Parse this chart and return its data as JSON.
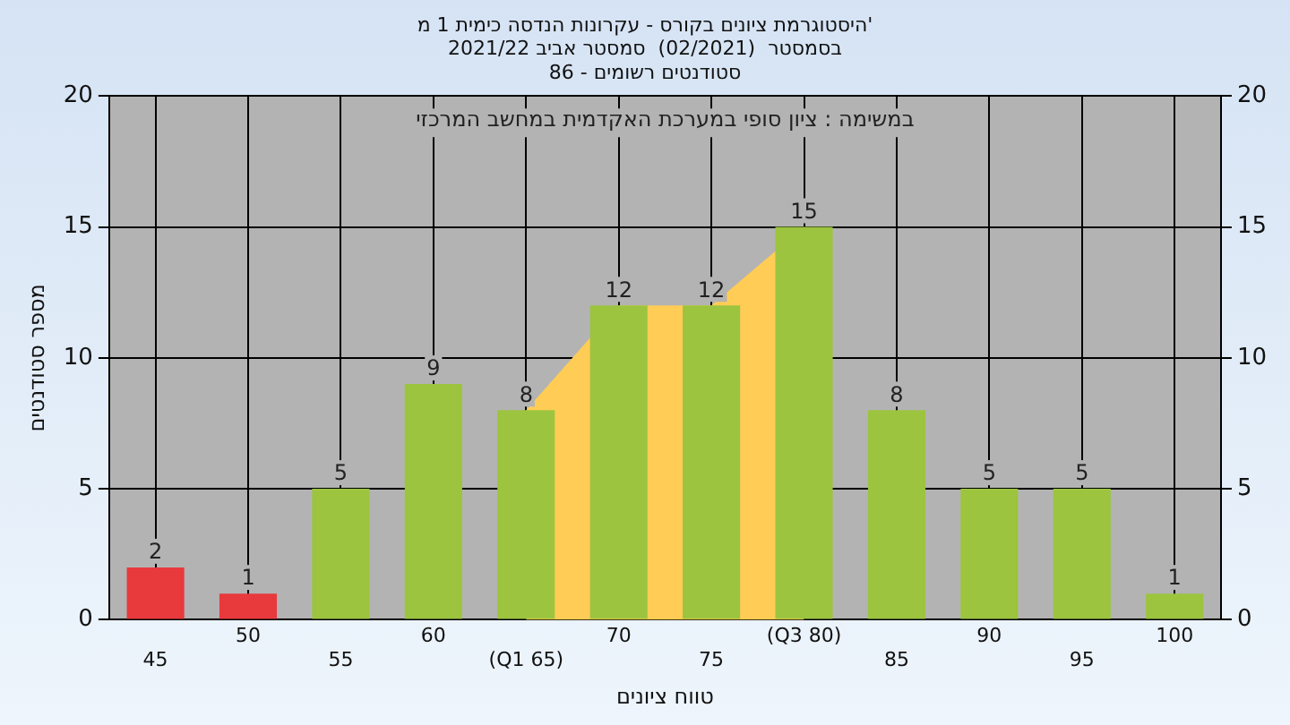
{
  "chart_data": {
    "type": "bar",
    "title": "היסטוגרמת ציונים בקורס - עקרונות הנדסה כימית 1 מ'",
    "subtitle": "בסמסטר  (02/2021)  סמסטר אביב 2021/22\nסטודנטים רשומים - 86",
    "xlabel": "טווח ציונים",
    "ylabel": "מספר סטודנטים",
    "annotations": [
      "במשימה : ציון סופי במערכת האקדמית במחשב המרכזי"
    ],
    "categories": [
      "45",
      "50",
      "55",
      "60",
      "(Q1 65)",
      "70",
      "75",
      "(Q3 80)",
      "85",
      "90",
      "95",
      "100"
    ],
    "series": [
      {
        "values": [
          2,
          1,
          5,
          9,
          8,
          12,
          12,
          15,
          8,
          5,
          5,
          1
        ],
        "value_labels": [
          "2",
          "1",
          "5",
          "9",
          "8",
          "12",
          "12",
          "15",
          "8",
          "5",
          "5",
          "1"
        ],
        "colors": [
          "#e8393d",
          "#e8393d",
          "#9cc43f",
          "#9cc43f",
          "#9cc43f",
          "#9cc43f",
          "#9cc43f",
          "#9cc43f",
          "#9cc43f",
          "#9cc43f",
          "#9cc43f",
          "#9cc43f"
        ]
      },
      {
        "type": "area",
        "color": "#ffcc55",
        "values": [
          null,
          null,
          null,
          null,
          8,
          12,
          12,
          15,
          null,
          null,
          null,
          null
        ]
      }
    ],
    "ylim": [
      0,
      20
    ],
    "yticks": [
      0,
      5,
      10,
      15,
      20
    ],
    "y2lim": [
      0,
      20
    ],
    "y2ticks": [
      0,
      5,
      10,
      15,
      20
    ],
    "grid": true,
    "legend": false
  }
}
